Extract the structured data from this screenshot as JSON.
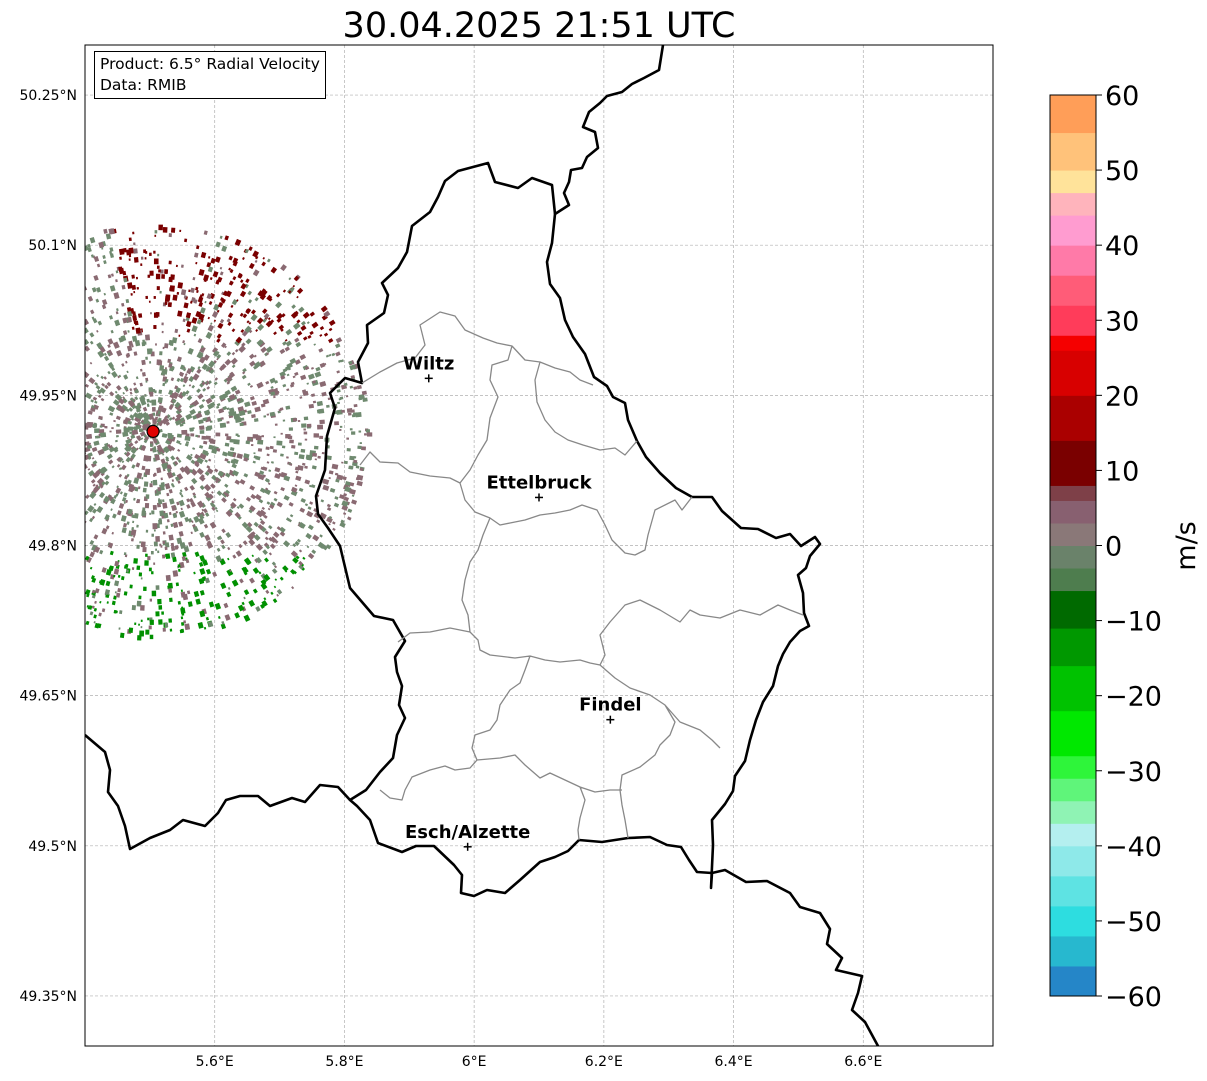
{
  "title": "30.04.2025 21:51 UTC",
  "info_box": {
    "product_line": "Product: 6.5° Radial Velocity",
    "data_line": "Data: RMIB"
  },
  "map": {
    "lon_range": [
      5.4,
      6.8
    ],
    "lat_range": [
      49.3,
      50.3
    ],
    "lat_ticks": [
      {
        "value": 50.25,
        "label": "50.25°N"
      },
      {
        "value": 50.1,
        "label": "50.1°N"
      },
      {
        "value": 49.95,
        "label": "49.95°N"
      },
      {
        "value": 49.8,
        "label": "49.8°N"
      },
      {
        "value": 49.65,
        "label": "49.65°N"
      },
      {
        "value": 49.5,
        "label": "49.5°N"
      },
      {
        "value": 49.35,
        "label": "49.35°N"
      }
    ],
    "lon_ticks": [
      {
        "value": 5.6,
        "label": "5.6°E"
      },
      {
        "value": 5.8,
        "label": "5.8°E"
      },
      {
        "value": 6.0,
        "label": "6°E"
      },
      {
        "value": 6.2,
        "label": "6.2°E"
      },
      {
        "value": 6.4,
        "label": "6.4°E"
      },
      {
        "value": 6.6,
        "label": "6.6°E"
      }
    ],
    "grid": true,
    "cities": [
      {
        "name": "Wiltz",
        "lon": 5.93,
        "lat": 49.967
      },
      {
        "name": "Ettelbruck",
        "lon": 6.1,
        "lat": 49.848
      },
      {
        "name": "Findel",
        "lon": 6.21,
        "lat": 49.626
      },
      {
        "name": "Esch/Alzette",
        "lon": 5.99,
        "lat": 49.499
      }
    ],
    "radar_site": {
      "lon": 5.505,
      "lat": 49.914,
      "color": "#e00000"
    }
  },
  "colorbar": {
    "label": "m/s",
    "min": -60,
    "max": 60,
    "ticks": [
      {
        "value": 60,
        "label": "60"
      },
      {
        "value": 50,
        "label": "50"
      },
      {
        "value": 40,
        "label": "40"
      },
      {
        "value": 30,
        "label": "30"
      },
      {
        "value": 20,
        "label": "20"
      },
      {
        "value": 10,
        "label": "10"
      },
      {
        "value": 0,
        "label": "0"
      },
      {
        "value": -10,
        "label": "−10"
      },
      {
        "value": -20,
        "label": "−20"
      },
      {
        "value": -30,
        "label": "−30"
      },
      {
        "value": -40,
        "label": "−40"
      },
      {
        "value": -50,
        "label": "−50"
      },
      {
        "value": -60,
        "label": "−60"
      }
    ],
    "stops": [
      {
        "from": -60,
        "to": -56,
        "color": "#2586c8"
      },
      {
        "from": -56,
        "to": -52,
        "color": "#27b8cf"
      },
      {
        "from": -52,
        "to": -48,
        "color": "#2ddde0"
      },
      {
        "from": -48,
        "to": -44,
        "color": "#5ee3e3"
      },
      {
        "from": -44,
        "to": -40,
        "color": "#8ee9e9"
      },
      {
        "from": -40,
        "to": -37,
        "color": "#b4efef"
      },
      {
        "from": -37,
        "to": -34,
        "color": "#8ff3b4"
      },
      {
        "from": -34,
        "to": -31,
        "color": "#5ff57a"
      },
      {
        "from": -31,
        "to": -28,
        "color": "#2ef53a"
      },
      {
        "from": -28,
        "to": -22,
        "color": "#00e800"
      },
      {
        "from": -22,
        "to": -16,
        "color": "#00c200"
      },
      {
        "from": -16,
        "to": -11,
        "color": "#009800"
      },
      {
        "from": -11,
        "to": -6,
        "color": "#006a00"
      },
      {
        "from": -6,
        "to": -3,
        "color": "#4e7d4e"
      },
      {
        "from": -3,
        "to": 0,
        "color": "#6a826a"
      },
      {
        "from": 0,
        "to": 3,
        "color": "#8a7878"
      },
      {
        "from": 3,
        "to": 6,
        "color": "#886070"
      },
      {
        "from": 6,
        "to": 8,
        "color": "#7e4048"
      },
      {
        "from": 8,
        "to": 14,
        "color": "#7a0000"
      },
      {
        "from": 14,
        "to": 20,
        "color": "#aa0000"
      },
      {
        "from": 20,
        "to": 26,
        "color": "#d80000"
      },
      {
        "from": 26,
        "to": 28,
        "color": "#f50000"
      },
      {
        "from": 28,
        "to": 32,
        "color": "#ff3c5a"
      },
      {
        "from": 32,
        "to": 36,
        "color": "#ff5c78"
      },
      {
        "from": 36,
        "to": 40,
        "color": "#ff7aa8"
      },
      {
        "from": 40,
        "to": 44,
        "color": "#ff9cd0"
      },
      {
        "from": 44,
        "to": 47,
        "color": "#ffb4bc"
      },
      {
        "from": 47,
        "to": 50,
        "color": "#ffe39a"
      },
      {
        "from": 50,
        "to": 55,
        "color": "#ffc27a"
      },
      {
        "from": 55,
        "to": 60,
        "color": "#ff9e58"
      }
    ]
  },
  "echo_colors": {
    "approach": "#6f8a6f",
    "recede": "#7a0000",
    "strong_approach": "#009000",
    "mixed": "#8a6a72"
  }
}
